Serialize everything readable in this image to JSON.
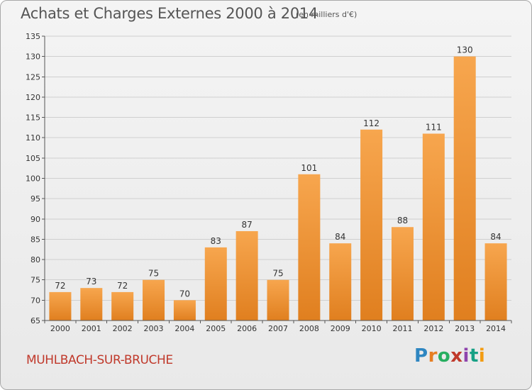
{
  "header": {
    "title": "Achats et Charges Externes 2000 à 2014",
    "unit": "(en milliers d'€)"
  },
  "footer": {
    "commune": "MUHLBACH-SUR-BRUCHE",
    "logo_text": "Proxiti",
    "logo_colors": [
      "#2e86c1",
      "#e67e22",
      "#27ae60",
      "#c0392b",
      "#8e44ad",
      "#16a085",
      "#f39c12"
    ]
  },
  "colors": {
    "bar_light": "#f7a64e",
    "bar_dark": "#e07f1f",
    "grid": "#cfcfcf",
    "axis": "#555555",
    "text": "#333333",
    "commune": "#c0392b"
  },
  "chart_data": {
    "type": "bar",
    "title": "Achats et Charges Externes 2000 à 2014",
    "subtitle": "(en milliers d'€)",
    "categories": [
      "2000",
      "2001",
      "2002",
      "2003",
      "2004",
      "2005",
      "2006",
      "2007",
      "2008",
      "2009",
      "2010",
      "2011",
      "2012",
      "2013",
      "2014"
    ],
    "values": [
      72,
      73,
      72,
      75,
      70,
      83,
      87,
      75,
      101,
      84,
      112,
      88,
      111,
      130,
      84
    ],
    "data_labels": [
      "72",
      "73",
      "72",
      "75",
      "70",
      "83",
      "87",
      "75",
      "101",
      "84",
      "112",
      "88",
      "111",
      "130",
      "84"
    ],
    "ylim": [
      65,
      135
    ],
    "yticks": [
      65,
      70,
      75,
      80,
      85,
      90,
      95,
      100,
      105,
      110,
      115,
      120,
      125,
      130,
      135
    ],
    "grid": true,
    "legend": "none"
  }
}
